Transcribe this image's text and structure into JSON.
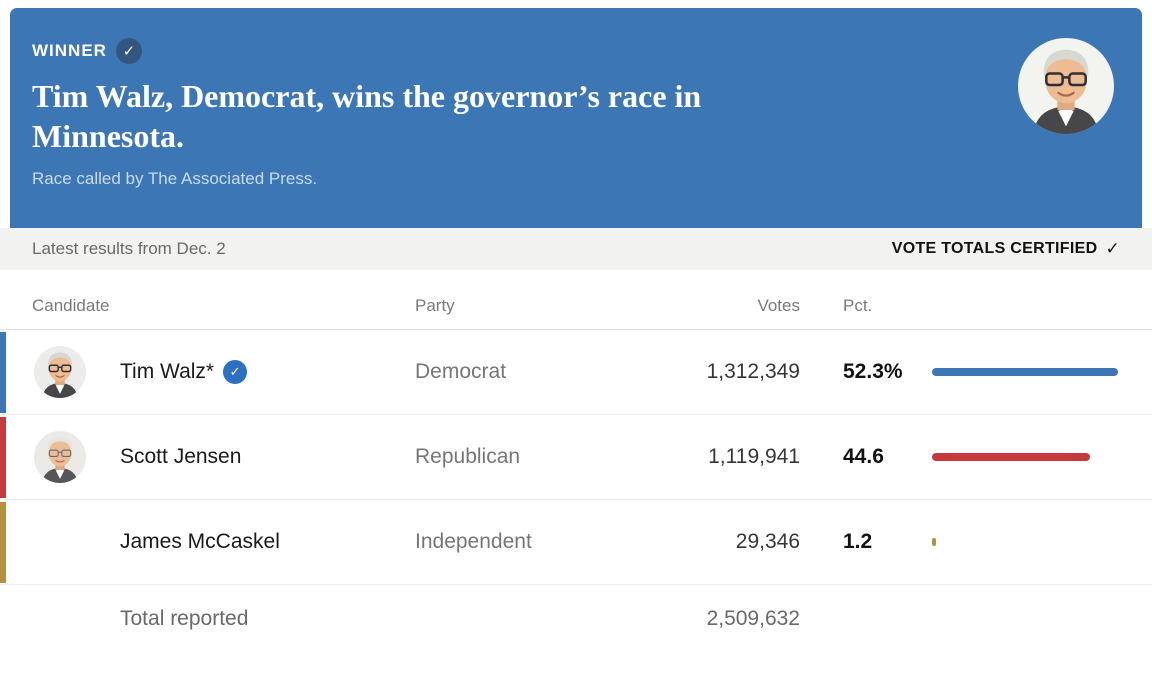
{
  "header": {
    "winner_label": "WINNER",
    "headline": "Tim Walz, Democrat, wins the governor’s race in Minnesota.",
    "subtitle": "Race called by The Associated Press."
  },
  "meta_bar": {
    "left_text": "Latest results from Dec. 2",
    "right_text": "VOTE TOTALS CERTIFIED"
  },
  "icons": {
    "check": "✓"
  },
  "colors": {
    "header_bg": "#3d76b5",
    "winner_check_bg": "#33567f",
    "democrat": "#3d76b5",
    "republican": "#c53a3c",
    "independent": "#b3913f"
  },
  "table": {
    "columns": [
      "Candidate",
      "Party",
      "Votes",
      "Pct."
    ],
    "rows": [
      {
        "candidate": "Tim Walz*",
        "party": "Democrat",
        "votes": "1,312,349",
        "pct": "52.3%",
        "pct_value": 52.3,
        "bar_color": "#3d76b5",
        "winner": true
      },
      {
        "candidate": "Scott Jensen",
        "party": "Republican",
        "votes": "1,119,941",
        "pct": "44.6",
        "pct_value": 44.6,
        "bar_color": "#c53a3c",
        "winner": false
      },
      {
        "candidate": "James McCaskel",
        "party": "Independent",
        "votes": "29,346",
        "pct": "1.2",
        "pct_value": 1.2,
        "bar_color": "#b3913f",
        "winner": false
      }
    ],
    "total": {
      "label": "Total reported",
      "votes": "2,509,632"
    }
  },
  "chart_data": {
    "type": "table",
    "title": "Tim Walz, Democrat, wins the governor’s race in Minnesota.",
    "subtitle": "Race called by The Associated Press.",
    "status": "Latest results from Dec. 2 — VOTE TOTALS CERTIFIED",
    "columns": [
      "Candidate",
      "Party",
      "Votes",
      "Pct."
    ],
    "rows": [
      [
        "Tim Walz*",
        "Democrat",
        1312349,
        52.3
      ],
      [
        "Scott Jensen",
        "Republican",
        1119941,
        44.6
      ],
      [
        "James McCaskel",
        "Independent",
        29346,
        1.2
      ]
    ],
    "total_reported": 2509632,
    "bar_colors": [
      "#3d76b5",
      "#c53a3c",
      "#b3913f"
    ],
    "bar_axis_max_pct": 60
  }
}
